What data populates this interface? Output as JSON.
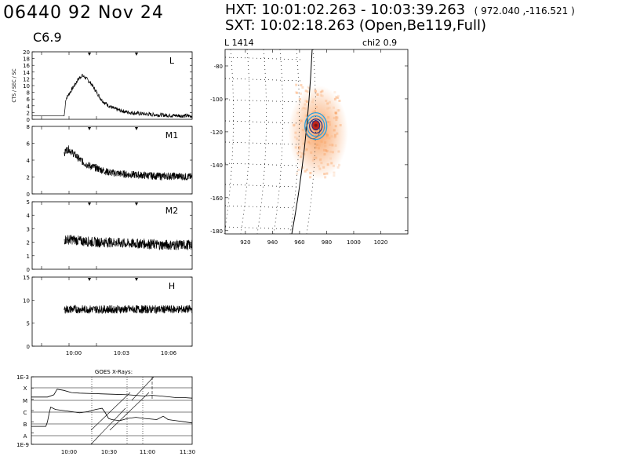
{
  "header": {
    "flare_id_date": "06440   92 Nov 24",
    "goes_class": "C6.9",
    "hxt_text": "HXT: 10:01:02.263 - 10:03:39.263",
    "hxt_coords": "( 972.040 ,-116.521 )",
    "sxt_text": "SXT: 10:02:18.263 (Open,Be119,Full)"
  },
  "image_panel": {
    "label_left": "L   1414",
    "label_right": "chi2   0.9"
  },
  "colors": {
    "trace": "#000000",
    "contour_blue": "#2aa0e0",
    "contour_dark": "#1a2a8a",
    "contour_gray": "#707070",
    "core_red": "#c0241a",
    "sxt_orange": "#f8a060"
  },
  "chart_data": [
    {
      "type": "line",
      "panel": "L",
      "label": "L",
      "ylabel": "CTS / SEC / SC",
      "ylim": [
        0,
        20
      ],
      "yticks": [
        "0",
        "2",
        "4",
        "6",
        "8",
        "10",
        "12",
        "14",
        "16",
        "18",
        "20"
      ],
      "xticks": [
        "10:00",
        "10:03",
        "10:06"
      ],
      "x": [
        0,
        20,
        20.5,
        21,
        23,
        25,
        27,
        29,
        31,
        33,
        35,
        37,
        39,
        41,
        43,
        45,
        48,
        51,
        55,
        60,
        65,
        70,
        75,
        80,
        85,
        90,
        95,
        100
      ],
      "values": [
        1,
        1,
        3,
        6,
        7.5,
        9,
        10.5,
        12,
        13,
        12.5,
        11.5,
        10.5,
        9,
        7.5,
        6,
        5,
        4,
        3.2,
        2.6,
        2.1,
        1.8,
        1.6,
        1.4,
        1.3,
        1.2,
        1.1,
        1.05,
        1
      ]
    },
    {
      "type": "line",
      "panel": "M1",
      "label": "M1",
      "ylim": [
        0,
        8
      ],
      "yticks": [
        "0",
        "2",
        "4",
        "6",
        "8"
      ],
      "xticks": [
        "10:00",
        "10:03",
        "10:06"
      ],
      "x": [
        20,
        21,
        23,
        25,
        27,
        29,
        31,
        33,
        35,
        38,
        41,
        44,
        47,
        50,
        55,
        60,
        70,
        80,
        90,
        100
      ],
      "values": [
        4.5,
        5.2,
        5.3,
        4.9,
        4.6,
        4.2,
        3.9,
        3.6,
        3.4,
        3.2,
        3.0,
        2.8,
        2.6,
        2.5,
        2.4,
        2.3,
        2.2,
        2.1,
        2.1,
        2.0
      ]
    },
    {
      "type": "line",
      "panel": "M2",
      "label": "M2",
      "ylim": [
        0,
        5
      ],
      "yticks": [
        "0",
        "1",
        "2",
        "3",
        "4",
        "5"
      ],
      "xticks": [
        "10:00",
        "10:03",
        "10:06"
      ],
      "x": [
        20,
        25,
        30,
        40,
        50,
        60,
        70,
        80,
        90,
        100
      ],
      "values": [
        2.2,
        2.2,
        2.1,
        2.0,
        2.0,
        1.9,
        1.9,
        1.8,
        1.8,
        1.8
      ]
    },
    {
      "type": "line",
      "panel": "H",
      "label": "H",
      "ylim": [
        0,
        15
      ],
      "yticks": [
        "0",
        "5",
        "10",
        "15"
      ],
      "xticks": [
        "10:00",
        "10:03",
        "10:06"
      ],
      "x": [
        20,
        30,
        40,
        50,
        60,
        70,
        80,
        90,
        100
      ],
      "values": [
        8,
        8,
        8,
        8,
        8,
        8,
        8,
        8,
        8
      ]
    },
    {
      "type": "line",
      "panel": "GOES",
      "title": "GOES X-Rays:",
      "ylim_labels": [
        "1E-3",
        "1E-9"
      ],
      "class_levels": [
        "X",
        "M",
        "C",
        "B",
        "A"
      ],
      "xticks": [
        "10:00",
        "10:30",
        "11:00",
        "11:30"
      ],
      "series": [
        {
          "x": [
            0,
            10,
            14,
            16,
            20,
            25,
            30,
            40,
            50,
            60,
            70,
            75,
            80,
            90,
            95,
            100
          ],
          "values": [
            4.8,
            4.8,
            4.6,
            4.1,
            4.2,
            4.4,
            4.45,
            4.5,
            4.55,
            4.6,
            4.7,
            4.65,
            4.7,
            4.85,
            4.85,
            4.9
          ]
        },
        {
          "x": [
            0,
            9,
            10,
            11,
            12,
            15,
            20,
            25,
            30,
            35,
            40,
            44,
            46,
            48,
            50,
            55,
            60,
            65,
            70,
            78,
            82,
            85,
            90,
            95,
            100
          ],
          "values": [
            7.4,
            7.4,
            7.0,
            6.3,
            5.7,
            5.9,
            6.0,
            6.1,
            6.2,
            6.1,
            5.9,
            5.8,
            6.2,
            6.7,
            6.8,
            6.9,
            6.7,
            6.6,
            6.7,
            6.8,
            6.5,
            6.8,
            6.9,
            7.0,
            7.1
          ]
        }
      ]
    },
    {
      "type": "heatmap",
      "panel": "image",
      "xlim": [
        905,
        1040
      ],
      "ylim": [
        -182,
        -70
      ],
      "xticks": [
        920,
        940,
        960,
        980,
        1000,
        1020
      ],
      "yticks": [
        -80,
        -100,
        -120,
        -140,
        -160,
        -180
      ],
      "centroid": [
        972.04,
        -116.521
      ]
    }
  ]
}
